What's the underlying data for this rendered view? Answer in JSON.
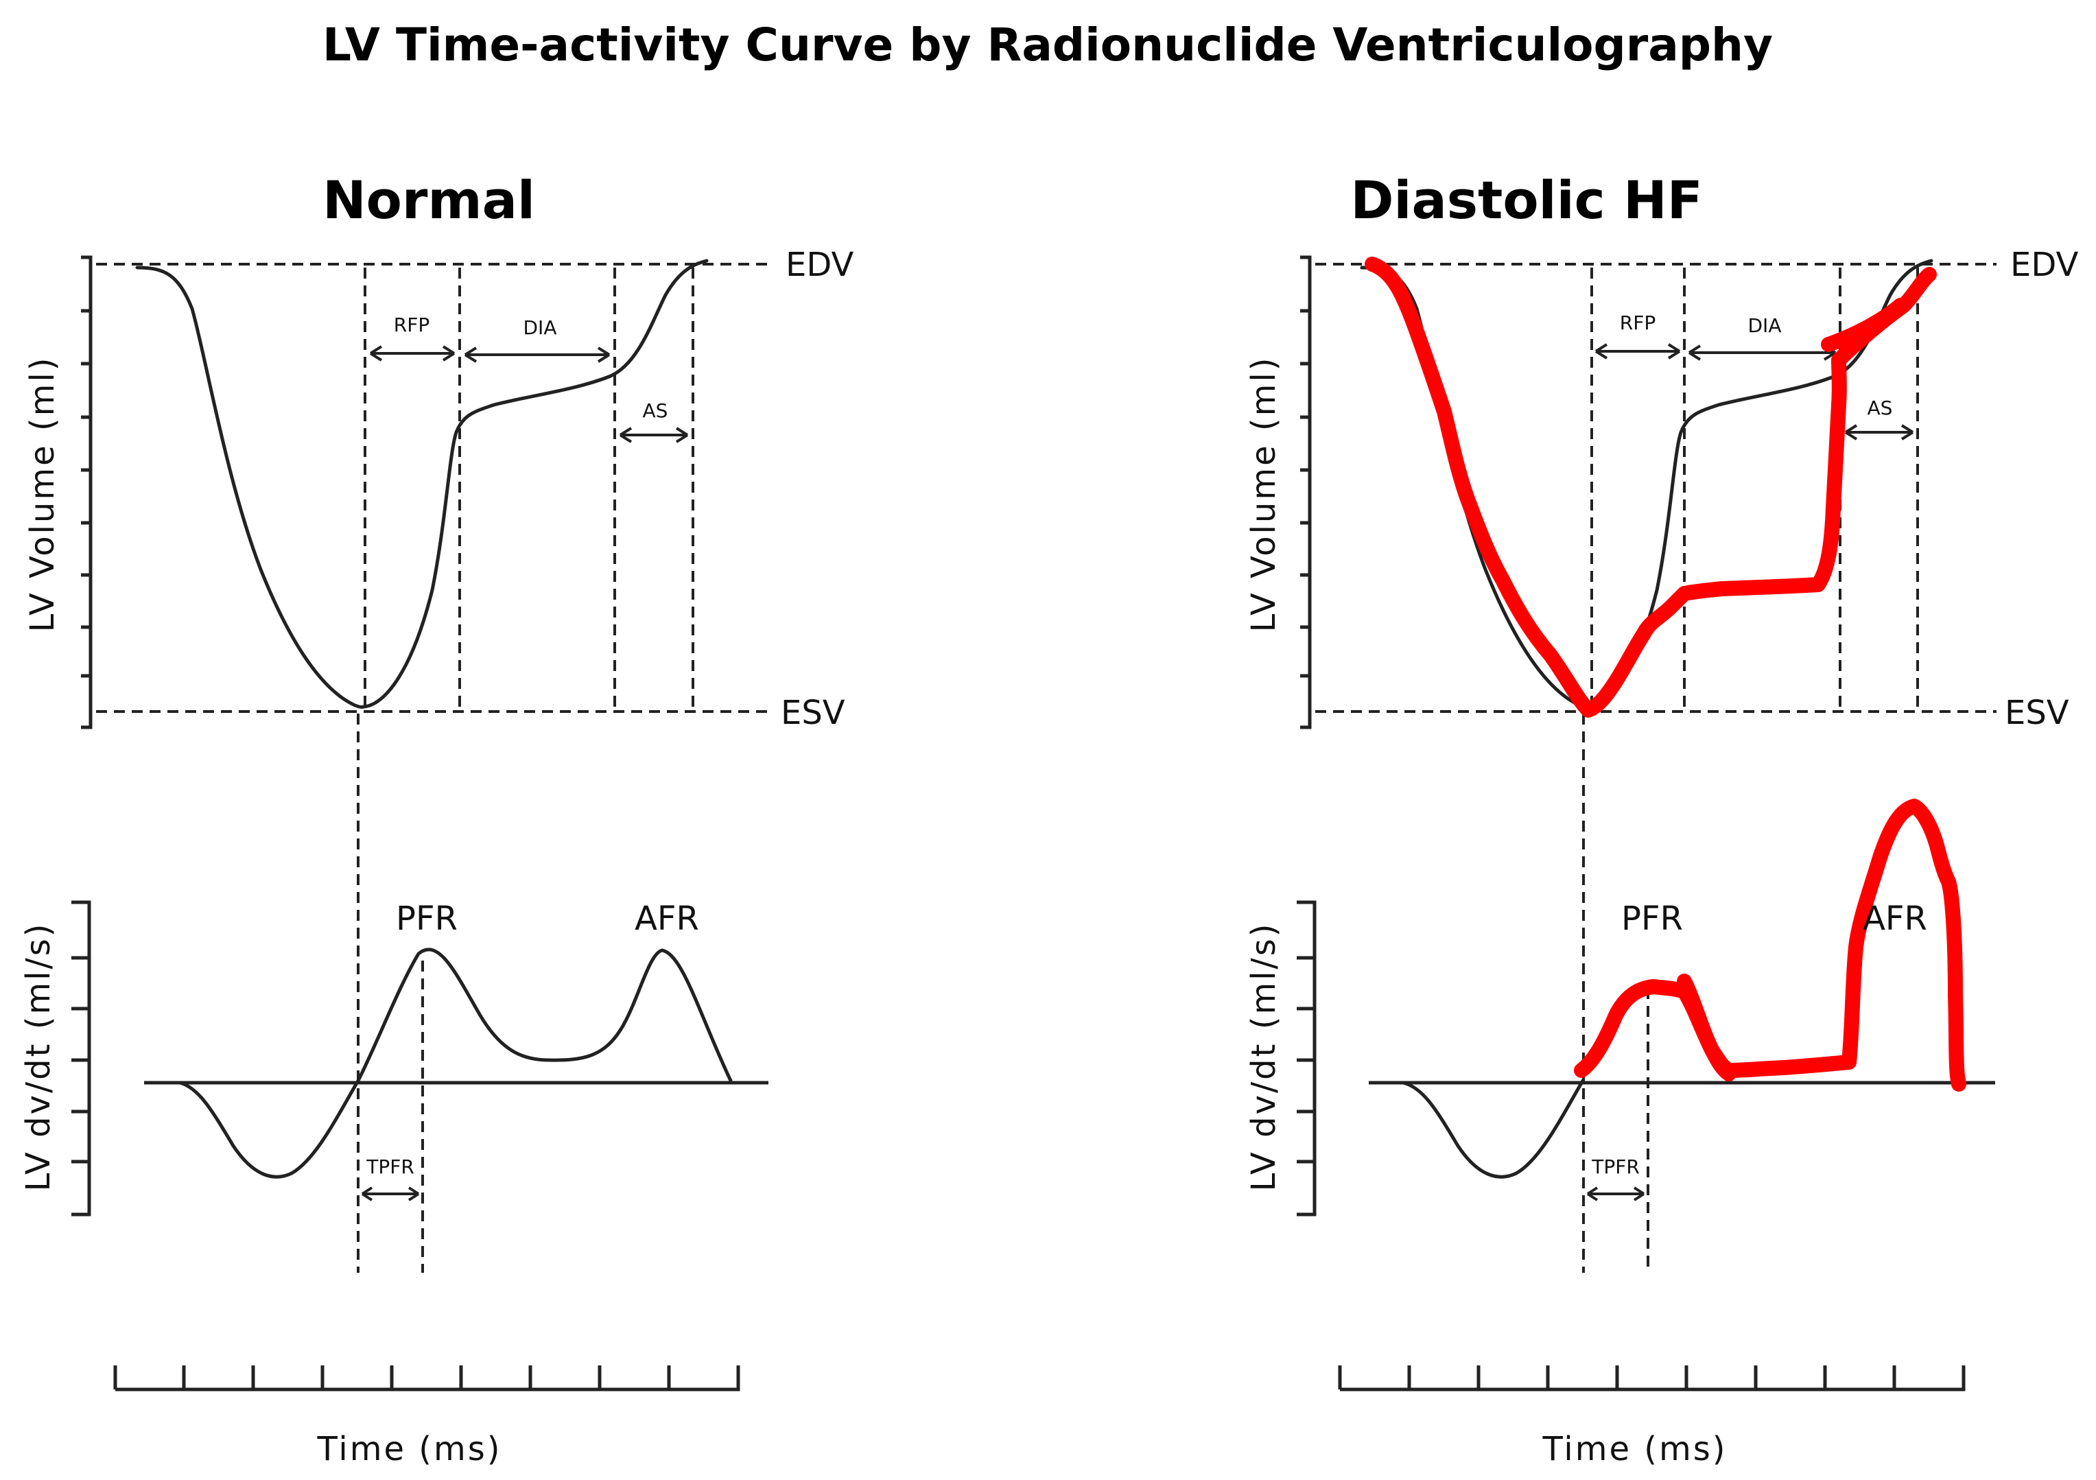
{
  "title": "LV Time-activity Curve by Radionuclide Ventriculography",
  "panels": {
    "normal": {
      "title": "Normal"
    },
    "diastolic": {
      "title": "Diastolic HF"
    }
  },
  "labels": {
    "edv": "EDV",
    "esv": "ESV",
    "rfp": "RFP",
    "dia": "DIA",
    "as": "AS",
    "pfr": "PFR",
    "afr": "AFR",
    "tpfr": "TPFR",
    "ylabel_volume": "LV Volume (ml)",
    "ylabel_rate": "LV dv/dt (ml/s)",
    "xlabel": "Time (ms)"
  },
  "colors": {
    "line": "#222222",
    "highlight": "#ff0000"
  }
}
